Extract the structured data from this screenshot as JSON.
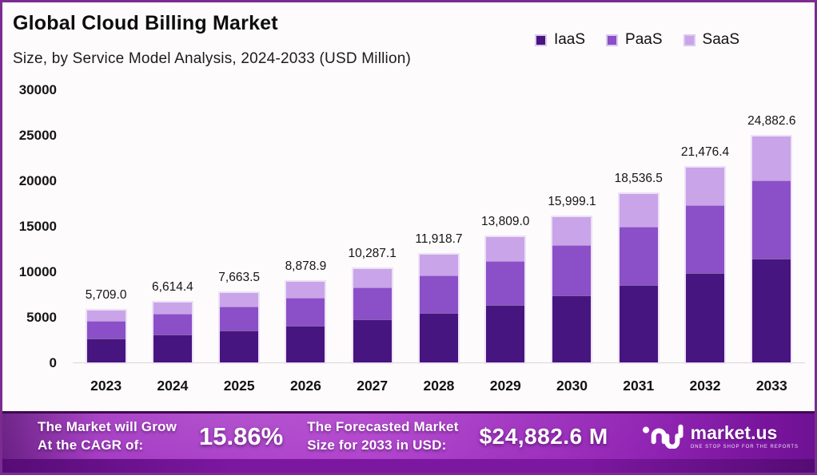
{
  "header": {
    "title": "Global Cloud Billing Market",
    "subtitle": "Size, by Service Model Analysis, 2024-2033 (USD Million)"
  },
  "legend": [
    {
      "label": "IaaS",
      "color": "#471580"
    },
    {
      "label": "PaaS",
      "color": "#8b4fc8"
    },
    {
      "label": "SaaS",
      "color": "#c9a4e8"
    }
  ],
  "chart_data": {
    "type": "bar",
    "stacked": true,
    "title": "Global Cloud Billing Market Size, by Service Model Analysis, 2024-2033 (USD Million)",
    "xlabel": "",
    "ylabel": "",
    "ylim": [
      0,
      30000
    ],
    "yticks": [
      0,
      5000,
      10000,
      15000,
      20000,
      25000,
      30000
    ],
    "grid": false,
    "legend_position": "top-right",
    "categories": [
      "2023",
      "2024",
      "2025",
      "2026",
      "2027",
      "2028",
      "2029",
      "2030",
      "2031",
      "2032",
      "2033"
    ],
    "totals": [
      5709.0,
      6614.4,
      7663.5,
      8878.9,
      10287.1,
      11918.7,
      13809.0,
      15999.1,
      18536.5,
      21476.4,
      24882.6
    ],
    "total_labels": [
      "5,709.0",
      "6,614.4",
      "7,663.5",
      "8,878.9",
      "10,287.1",
      "11,918.7",
      "13,809.0",
      "15,999.1",
      "18,536.5",
      "21,476.4",
      "24,882.6"
    ],
    "series": [
      {
        "name": "IaaS",
        "color": "#471580",
        "values": [
          2626.1,
          3042.6,
          3525.2,
          4084.3,
          4732.1,
          5482.6,
          6352.1,
          7359.6,
          8526.8,
          9879.1,
          11446.0
        ]
      },
      {
        "name": "PaaS",
        "color": "#8b4fc8",
        "values": [
          1981.0,
          2295.2,
          2659.2,
          3081.0,
          3569.6,
          4135.8,
          4791.7,
          5551.7,
          6432.2,
          7452.3,
          8634.3
        ]
      },
      {
        "name": "SaaS",
        "color": "#c9a4e8",
        "values": [
          1101.9,
          1276.6,
          1479.1,
          1713.6,
          1985.4,
          2300.3,
          2665.2,
          3087.8,
          3577.5,
          4145.0,
          4802.3
        ]
      }
    ]
  },
  "footer": {
    "grow_line1": "The Market will Grow",
    "grow_line2": "At the CAGR of:",
    "cagr_value": "15.86%",
    "forecast_line1": "The Forecasted Market",
    "forecast_line2": "Size for 2033 in USD:",
    "forecast_value": "$24,882.6 M",
    "brand_name": "market.us",
    "brand_tagline": "ONE STOP SHOP FOR THE REPORTS"
  }
}
